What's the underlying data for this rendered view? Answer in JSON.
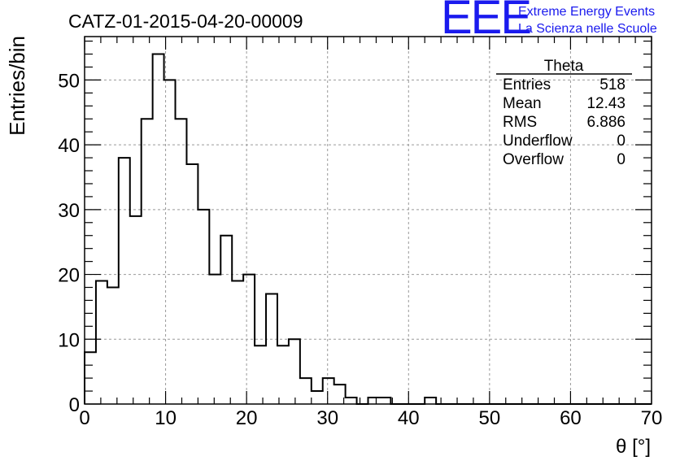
{
  "chart_data": {
    "type": "bar",
    "title": "CATZ-01-2015-04-20-00009",
    "xlabel": "θ [°]",
    "ylabel": "Entries/bin",
    "xlim": [
      0,
      70
    ],
    "ylim": [
      0,
      56.7
    ],
    "grid": true,
    "bin_width": 1.4,
    "bin_edges_start": 0,
    "values": [
      8,
      19,
      18,
      38,
      29,
      44,
      54,
      50,
      44,
      37,
      30,
      20,
      26,
      19,
      20,
      9,
      17,
      9,
      10,
      4,
      2,
      4,
      3,
      1,
      0,
      1,
      1,
      0,
      0,
      0,
      1,
      0,
      0,
      0,
      0,
      0,
      0,
      0,
      0,
      0,
      0,
      0,
      0,
      0,
      0,
      0,
      0,
      0,
      0,
      0
    ],
    "x_ticks": [
      "0",
      "10",
      "20",
      "30",
      "40",
      "50",
      "60",
      "70"
    ],
    "y_ticks": [
      "0",
      "10",
      "20",
      "30",
      "40",
      "50"
    ],
    "x_tick_values": [
      0,
      10,
      20,
      30,
      40,
      50,
      60,
      70
    ],
    "y_tick_values": [
      0,
      10,
      20,
      30,
      40,
      50
    ],
    "line_color": "#000000",
    "grid_color": "#999999"
  },
  "stats_box": {
    "title": "Theta",
    "rows": [
      {
        "label": "Entries",
        "value": "518"
      },
      {
        "label": "Mean",
        "value": "12.43"
      },
      {
        "label": "RMS",
        "value": "6.886"
      },
      {
        "label": "Underflow",
        "value": "0"
      },
      {
        "label": "Overflow",
        "value": "0"
      }
    ]
  },
  "logo": {
    "mark": "EEE",
    "line1": "Extreme Energy Events",
    "line2": "La Scienza nelle Scuole",
    "color": "#1a1aee"
  }
}
